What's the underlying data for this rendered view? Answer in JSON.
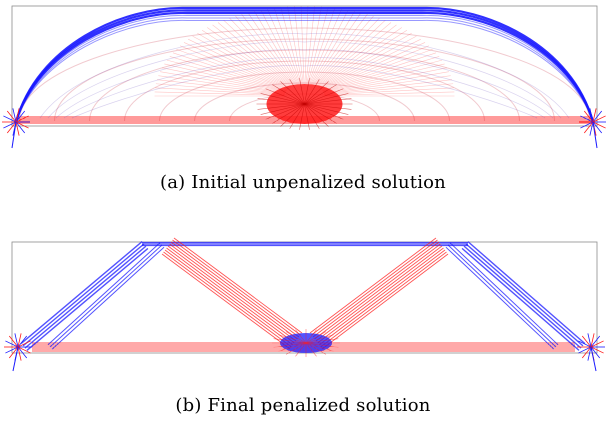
{
  "figure": {
    "panels": [
      {
        "id": "a",
        "caption": "(a) Initial unpenalized solution",
        "description_type": "dense-arch",
        "colors": {
          "compression": "#1a1aff",
          "tension": "#ff1a1a",
          "frame": "#8c8c8c"
        }
      },
      {
        "id": "b",
        "caption": "(b) Final penalized solution",
        "description_type": "truss",
        "colors": {
          "compression": "#1a1aff",
          "tension": "#ff1a1a",
          "frame": "#8c8c8c"
        }
      }
    ]
  }
}
